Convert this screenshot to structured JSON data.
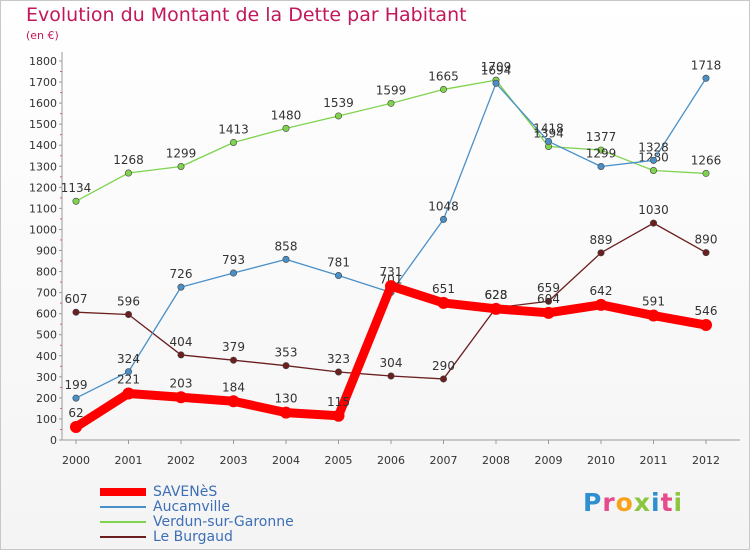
{
  "header": {
    "title": "Evolution du Montant de la Dette par Habitant",
    "subtitle": "(en €)"
  },
  "logo": {
    "text": "Proxiti",
    "colors": [
      "#2f8fd0",
      "#e64b8b",
      "#f7a21b",
      "#8cc63f",
      "#2f8fd0",
      "#e64b8b",
      "#8cc63f"
    ]
  },
  "chart_data": {
    "type": "line",
    "title": "Evolution du Montant de la Dette par Habitant",
    "subtitle": "(en €)",
    "xlabel": "",
    "ylabel": "",
    "x": [
      "2000",
      "2001",
      "2002",
      "2003",
      "2004",
      "2005",
      "2006",
      "2007",
      "2008",
      "2009",
      "2010",
      "2011",
      "2012"
    ],
    "ylim": [
      0,
      1800
    ],
    "yticks": [
      0,
      100,
      200,
      300,
      400,
      500,
      600,
      700,
      800,
      900,
      1000,
      1100,
      1200,
      1300,
      1400,
      1500,
      1600,
      1700,
      1800
    ],
    "grid": false,
    "legend_position": "bottom-left",
    "series": [
      {
        "name": "Le Burgaud",
        "color": "#6b1f1f",
        "values": [
          607,
          596,
          404,
          379,
          353,
          323,
          304,
          290,
          628,
          659,
          889,
          1030,
          890
        ]
      },
      {
        "name": "Verdun-sur-Garonne",
        "color": "#7fd34e",
        "values": [
          1134,
          1268,
          1299,
          1413,
          1480,
          1539,
          1599,
          1665,
          1709,
          1394,
          1377,
          1280,
          1266
        ]
      },
      {
        "name": "Aucamville",
        "color": "#4a90c8",
        "values": [
          199,
          324,
          726,
          793,
          858,
          781,
          701,
          1048,
          1694,
          1418,
          1299,
          1328,
          1718
        ]
      },
      {
        "name": "SAVENèS",
        "color": "#ff0000",
        "values": [
          62,
          221,
          203,
          184,
          130,
          115,
          731,
          651,
          623,
          604,
          642,
          591,
          546
        ]
      }
    ],
    "legend_order": [
      "SAVENèS",
      "Aucamville",
      "Verdun-sur-Garonne",
      "Le Burgaud"
    ]
  }
}
